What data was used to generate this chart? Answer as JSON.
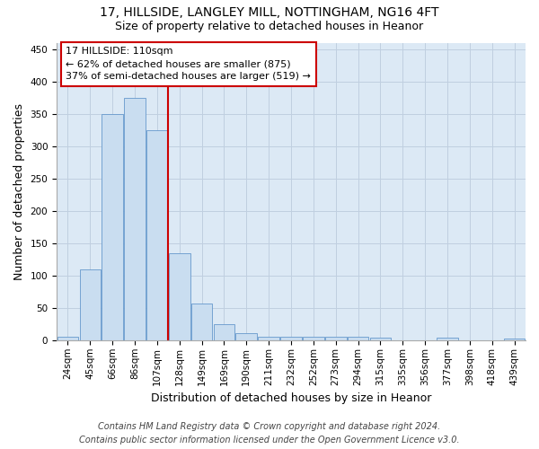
{
  "title_line1": "17, HILLSIDE, LANGLEY MILL, NOTTINGHAM, NG16 4FT",
  "title_line2": "Size of property relative to detached houses in Heanor",
  "xlabel": "Distribution of detached houses by size in Heanor",
  "ylabel": "Number of detached properties",
  "categories": [
    "24sqm",
    "45sqm",
    "66sqm",
    "86sqm",
    "107sqm",
    "128sqm",
    "149sqm",
    "169sqm",
    "190sqm",
    "211sqm",
    "232sqm",
    "252sqm",
    "273sqm",
    "294sqm",
    "315sqm",
    "335sqm",
    "356sqm",
    "377sqm",
    "398sqm",
    "418sqm",
    "439sqm"
  ],
  "values": [
    5,
    110,
    350,
    375,
    325,
    135,
    57,
    25,
    11,
    6,
    5,
    5,
    5,
    5,
    4,
    0,
    0,
    4,
    0,
    0,
    3
  ],
  "bar_color": "#c9ddf0",
  "bar_edge_color": "#6699cc",
  "vline_color": "#cc0000",
  "vline_index": 4,
  "ylim": [
    0,
    460
  ],
  "yticks": [
    0,
    50,
    100,
    150,
    200,
    250,
    300,
    350,
    400,
    450
  ],
  "annotation_line1": "17 HILLSIDE: 110sqm",
  "annotation_line2": "← 62% of detached houses are smaller (875)",
  "annotation_line3": "37% of semi-detached houses are larger (519) →",
  "annotation_box_color": "#ffffff",
  "annotation_box_edge": "#cc0000",
  "footer_line1": "Contains HM Land Registry data © Crown copyright and database right 2024.",
  "footer_line2": "Contains public sector information licensed under the Open Government Licence v3.0.",
  "bg_color": "#ffffff",
  "plot_bg_color": "#dce9f5",
  "grid_color": "#c0cfe0",
  "title_fontsize": 10,
  "subtitle_fontsize": 9,
  "axis_label_fontsize": 9,
  "tick_fontsize": 7.5,
  "annotation_fontsize": 8,
  "footer_fontsize": 7
}
